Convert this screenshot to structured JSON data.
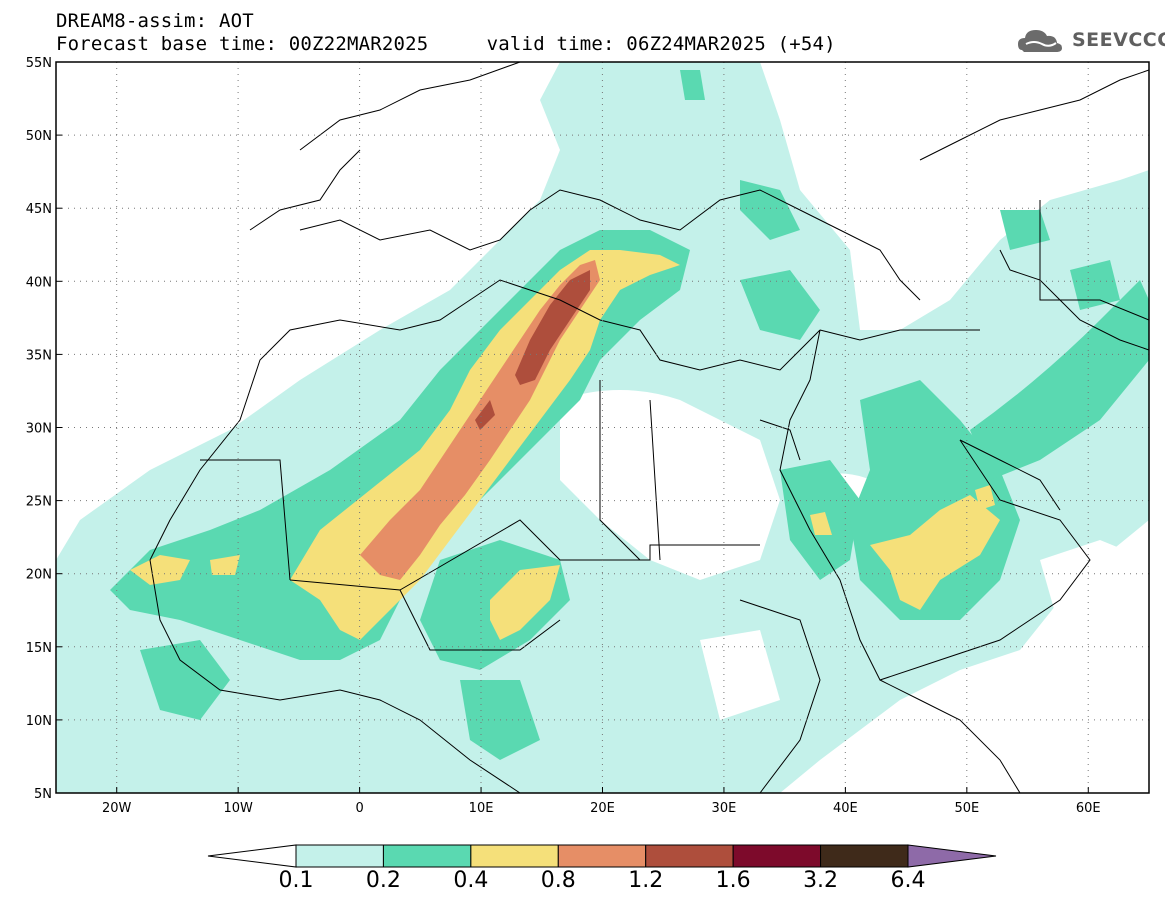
{
  "header": {
    "title_line1": "DREAM8-assim: AOT",
    "title_line2": "Forecast base time: 00Z22MAR2025     valid time: 06Z24MAR2025 (+54)",
    "logo_text": "SEEVCCC"
  },
  "map": {
    "lon_range": [
      -25,
      65
    ],
    "lat_range": [
      5,
      55
    ],
    "lon_ticks": [
      "20W",
      "10W",
      "0",
      "10E",
      "20E",
      "30E",
      "40E",
      "50E",
      "60E"
    ],
    "lat_ticks": [
      "55N",
      "50N",
      "45N",
      "40N",
      "35N",
      "30N",
      "25N",
      "20N",
      "15N",
      "10N",
      "5N"
    ],
    "grid": "dotted"
  },
  "colorbar": {
    "labels": [
      "0.1",
      "0.2",
      "0.4",
      "0.8",
      "1.2",
      "1.6",
      "3.2",
      "6.4"
    ],
    "colors": [
      "#ffffff",
      "#c4f1ea",
      "#5ad9b1",
      "#f5e07a",
      "#e68e66",
      "#ae4e3c",
      "#7d0a2b",
      "#3f2a1a",
      "#8e6aa8"
    ]
  }
}
